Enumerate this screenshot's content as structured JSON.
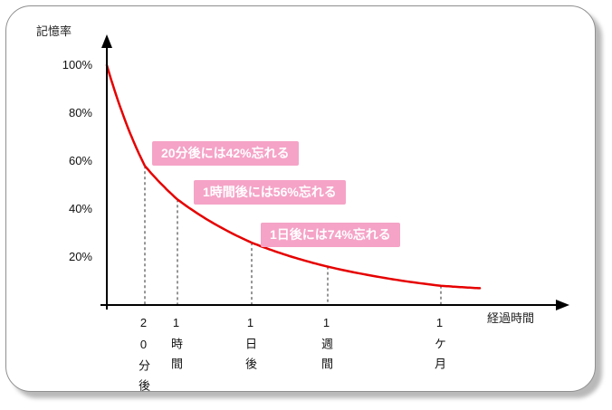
{
  "chart_data": {
    "type": "line",
    "ylabel": "記憶率",
    "xlabel": "経過時間",
    "y_ticks": [
      "100%",
      "80%",
      "60%",
      "40%",
      "20%"
    ],
    "y_tick_values": [
      100,
      80,
      60,
      40,
      20
    ],
    "ylim": [
      0,
      100
    ],
    "categories": [
      "20分後",
      "1時間",
      "1日後",
      "1週間",
      "1ケ月"
    ],
    "series": [
      {
        "name": "記憶率",
        "values": [
          58,
          44,
          26,
          16,
          8
        ]
      }
    ],
    "start_value": 100,
    "curve_tail_value": 7,
    "line_color": "#e60000",
    "annotation_bg": "#f5a3c7",
    "annotation_text_color": "#ffffff",
    "grid": "off",
    "annotations": [
      {
        "label": "20分後には42%忘れる",
        "forgotten_percent": 42
      },
      {
        "label": "1時間後には56%忘れる",
        "forgotten_percent": 56
      },
      {
        "label": "1日後には74%忘れる",
        "forgotten_percent": 74
      }
    ]
  }
}
